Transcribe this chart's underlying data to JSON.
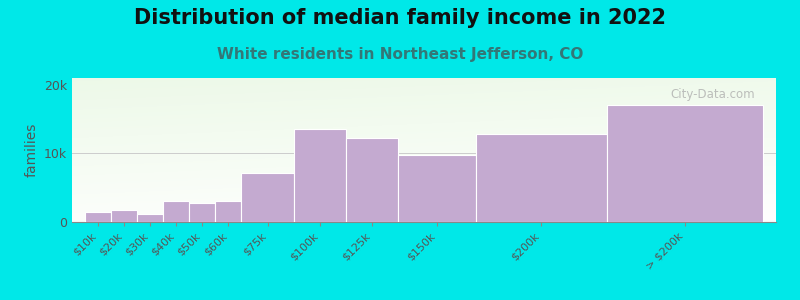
{
  "title": "Distribution of median family income in 2022",
  "subtitle": "White residents in Northeast Jefferson, CO",
  "ylabel": "families",
  "background_color": "#00e8e8",
  "bar_color": "#c4aad0",
  "bar_edge_color": "#ffffff",
  "categories": [
    "$10k",
    "$20k",
    "$30k",
    "$40k",
    "$50k",
    "$60k",
    "$75k",
    "$100k",
    "$125k",
    "$150k",
    "$200k",
    "> $200k"
  ],
  "values": [
    1400,
    1700,
    1100,
    3000,
    2700,
    3000,
    7200,
    13500,
    12200,
    9700,
    12800,
    17000
  ],
  "bin_lefts": [
    0,
    1,
    2,
    3,
    4,
    5,
    6,
    8,
    10,
    12,
    15,
    20
  ],
  "bin_widths": [
    1,
    1,
    1,
    1,
    1,
    1,
    2,
    2,
    2,
    3,
    5,
    6
  ],
  "ylim": [
    0,
    21000
  ],
  "yticks": [
    0,
    10000,
    20000
  ],
  "ytick_labels": [
    "0",
    "10k",
    "20k"
  ],
  "watermark": "City-Data.com",
  "title_fontsize": 15,
  "subtitle_fontsize": 11,
  "ylabel_fontsize": 10,
  "tick_label_color": "#555555",
  "title_color": "#111111",
  "subtitle_color": "#337777"
}
